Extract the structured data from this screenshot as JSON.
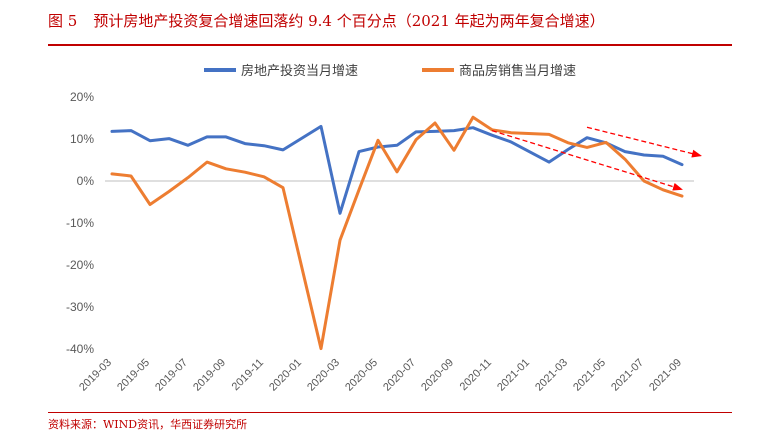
{
  "header": {
    "figure_label": "图 5",
    "title": "预计房地产投资复合增速回落约 9.4 个百分点（2021 年起为两年复合增速）"
  },
  "source": "资料来源：WIND资讯，华西证券研究所",
  "colors": {
    "accent": "#c00000",
    "series_investment": "#4472c4",
    "series_sales": "#ed7d31",
    "trend_arrow": "#ff0000",
    "axis": "#bfbfbf",
    "tick_text": "#595959"
  },
  "chart_data": {
    "type": "line",
    "title": "",
    "xlabel": "",
    "ylabel": "",
    "ylim": [
      -40,
      20
    ],
    "yticks": [
      20,
      10,
      0,
      -10,
      -20,
      -30,
      -40
    ],
    "ytick_labels": [
      "20%",
      "10%",
      "0%",
      "-10%",
      "-20%",
      "-30%",
      "-40%"
    ],
    "x": [
      "2019-03",
      "2019-04",
      "2019-05",
      "2019-06",
      "2019-07",
      "2019-08",
      "2019-09",
      "2019-10",
      "2019-11",
      "2019-12",
      "2020-01",
      "2020-02",
      "2020-03",
      "2020-04",
      "2020-05",
      "2020-06",
      "2020-07",
      "2020-08",
      "2020-09",
      "2020-10",
      "2020-11",
      "2020-12",
      "2021-01",
      "2021-02",
      "2021-03",
      "2021-04",
      "2021-05",
      "2021-06",
      "2021-07",
      "2021-08",
      "2021-09"
    ],
    "xtick_labels": [
      "2019-03",
      "2019-05",
      "2019-07",
      "2019-09",
      "2019-11",
      "2020-01",
      "2020-03",
      "2020-05",
      "2020-07",
      "2020-09",
      "2020-11",
      "2021-01",
      "2021-03",
      "2021-05",
      "2021-07",
      "2021-09"
    ],
    "legend_position": "top",
    "series": [
      {
        "name": "房地产投资当月增速",
        "values": [
          11.8,
          12.0,
          9.6,
          10.1,
          8.5,
          10.5,
          10.5,
          8.9,
          8.4,
          7.4,
          null,
          13.0,
          -7.7,
          7.0,
          8.1,
          8.5,
          11.7,
          11.8,
          12.0,
          12.7,
          10.9,
          9.3,
          null,
          4.5,
          7.5,
          10.3,
          9.1,
          7.0,
          6.2,
          5.9,
          3.9
        ]
      },
      {
        "name": "商品房销售当月增速",
        "values": [
          1.7,
          1.2,
          -5.6,
          -2.5,
          0.8,
          4.5,
          2.9,
          2.1,
          1.0,
          -1.6,
          null,
          -39.9,
          -14.1,
          -2.1,
          9.7,
          2.2,
          9.8,
          13.8,
          7.3,
          15.2,
          12.2,
          11.5,
          null,
          11.1,
          9.1,
          8.0,
          9.2,
          5.2,
          0.0,
          -2.1,
          -3.6
        ]
      }
    ],
    "annotations": [
      {
        "type": "trend-arrow",
        "from": [
          "2020-11",
          12.0
        ],
        "to": [
          "2021-09",
          -2.0
        ]
      },
      {
        "type": "trend-arrow",
        "from": [
          "2021-04",
          12.8
        ],
        "to": [
          "2021-10",
          6.0
        ]
      }
    ]
  }
}
